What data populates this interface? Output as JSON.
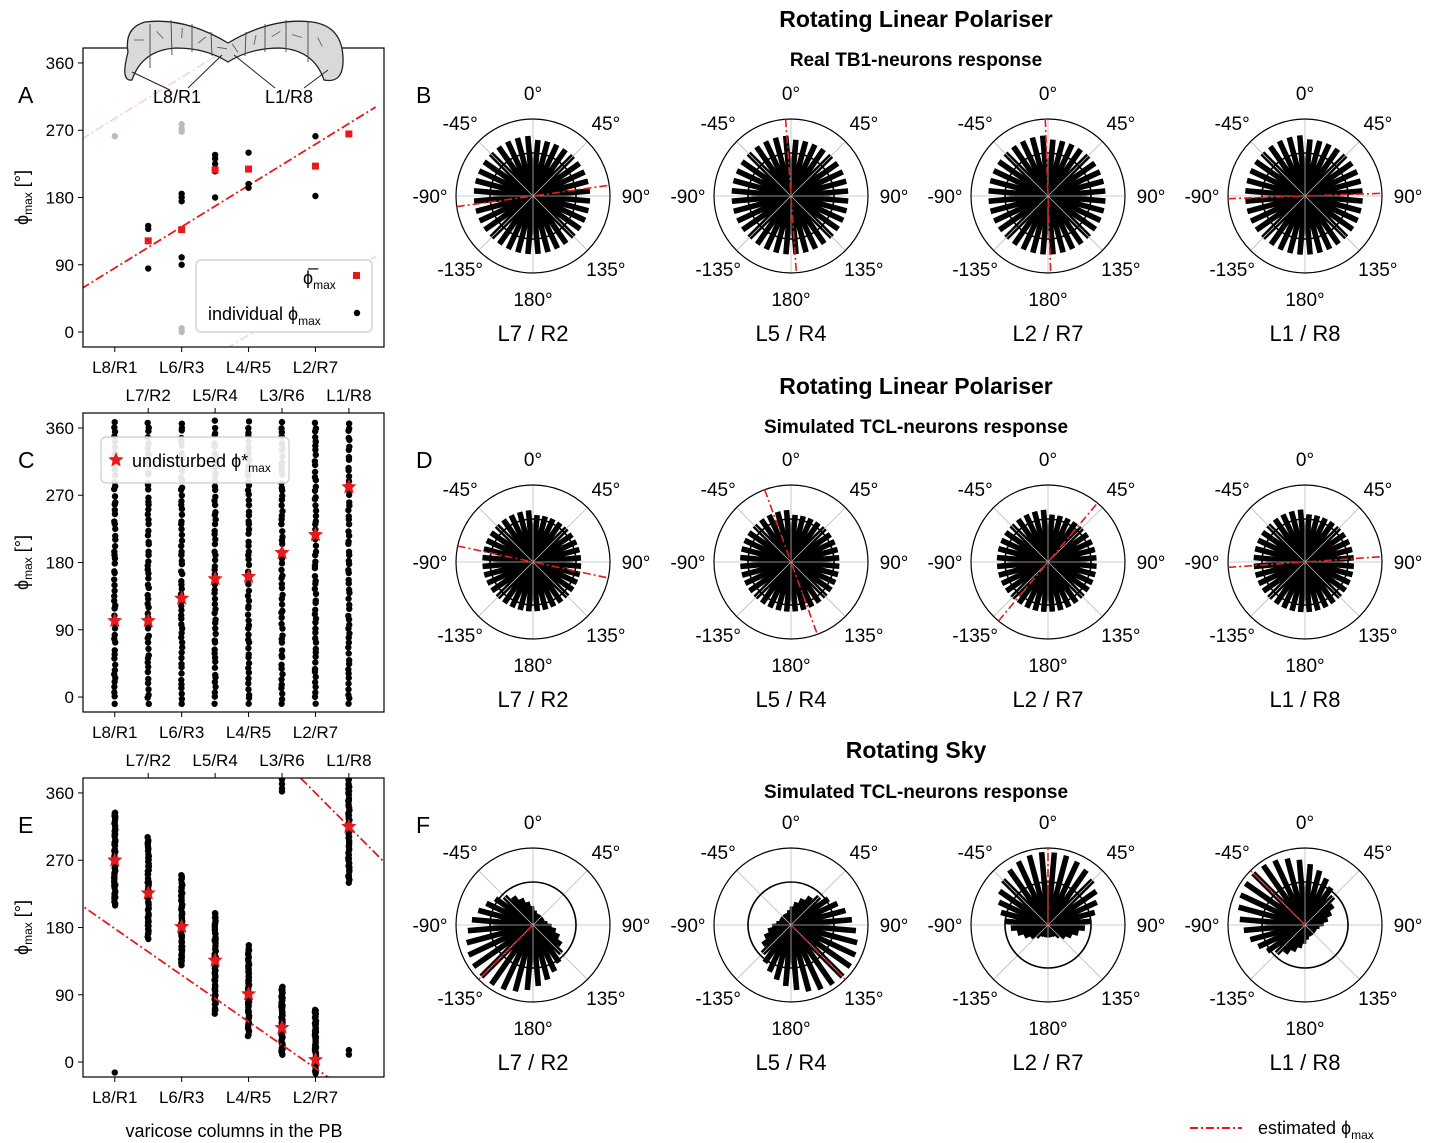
{
  "panel_letters": [
    "A",
    "B",
    "C",
    "D",
    "E",
    "F"
  ],
  "row_titles": [
    {
      "title": "Rotating Linear Polariser",
      "subtitle": "Real TB1-neurons response"
    },
    {
      "title": "Rotating Linear Polariser",
      "subtitle": "Simulated TCL-neurons response"
    },
    {
      "title": "Rotating Sky",
      "subtitle": "Simulated TCL-neurons response"
    }
  ],
  "pb_labels": {
    "left": "L8/R1",
    "right": "L1/R8"
  },
  "xaxis": {
    "bottom_ticks": [
      "L8/R1",
      "L6/R3",
      "L4/R5",
      "L2/R7"
    ],
    "top_ticks": [
      "L7/R2",
      "L5/R4",
      "L3/R6",
      "L1/R8"
    ],
    "xlabel": "varicose columns in the PB"
  },
  "ylabel": {
    "base": "ϕ",
    "sub": "max",
    "unit": "[°]"
  },
  "yticks": [
    "0",
    "90",
    "180",
    "270",
    "360"
  ],
  "legend_A": {
    "mean_label": "ϕ̅",
    "mean_sub": "max",
    "individual_label": "individual ϕ",
    "individual_sub": "max"
  },
  "legend_C": {
    "label": "undisturbed  ϕ*",
    "sub": "max"
  },
  "bottom_legend": {
    "label": "estimated ϕ",
    "sub": "max"
  },
  "polar_ticks": [
    "0°",
    "45°",
    "90°",
    "135°",
    "180°",
    "-135°",
    "-90°",
    "-45°"
  ],
  "polar_labels": [
    "L7 / R2",
    "L5 / R4",
    "L2 / R7",
    "L1 / R8"
  ],
  "colors": {
    "red": "#e41a1c",
    "black": "#000000",
    "gray": "#bbbbbb"
  },
  "chart_data": [
    {
      "type": "scatter",
      "panel": "A",
      "xlabel": "",
      "ylabel": "ϕmax [°]",
      "ylim": [
        -20,
        380
      ],
      "categories": [
        "L8/R1",
        "L7/R2",
        "L6/R3",
        "L5/R4",
        "L4/R5",
        "L3/R6",
        "L2/R7",
        "L1/R8"
      ],
      "series": [
        {
          "name": "ϕ̅max",
          "values": [
            null,
            122,
            137,
            217,
            218,
            null,
            222,
            265
          ]
        },
        {
          "name": "individual ϕmax",
          "points": [
            [
              1,
              85
            ],
            [
              1,
              138
            ],
            [
              1,
              142
            ],
            [
              2,
              90
            ],
            [
              2,
              100
            ],
            [
              2,
              175
            ],
            [
              2,
              180
            ],
            [
              2,
              185
            ],
            [
              3,
              180
            ],
            [
              3,
              215
            ],
            [
              3,
              225
            ],
            [
              3,
              232
            ],
            [
              3,
              237
            ],
            [
              4,
              193
            ],
            [
              4,
              198
            ],
            [
              4,
              218
            ],
            [
              4,
              240
            ],
            [
              6,
              182
            ],
            [
              6,
              262
            ]
          ]
        }
      ],
      "faded_points": [
        [
          0,
          262
        ],
        [
          2,
          0
        ],
        [
          2,
          5
        ],
        [
          2,
          268
        ],
        [
          2,
          272
        ],
        [
          2,
          278
        ]
      ],
      "fit_line": {
        "name": "estimated ϕmax",
        "x": [
          -1,
          7.8
        ],
        "y": [
          58,
          301
        ],
        "wrap": 360
      }
    },
    {
      "type": "scatter",
      "panel": "C",
      "ylabel": "ϕmax [°]",
      "ylim": [
        -20,
        380
      ],
      "categories": [
        "L8/R1",
        "L7/R2",
        "L6/R3",
        "L5/R4",
        "L4/R5",
        "L3/R6",
        "L2/R7",
        "L1/R8"
      ],
      "series": [
        {
          "name": "undisturbed ϕ*max",
          "values": [
            102,
            102,
            132,
            158,
            161,
            193,
            217,
            281
          ]
        }
      ],
      "individual_spread": "dense points from 0 to 360 in each column"
    },
    {
      "type": "scatter",
      "panel": "E",
      "ylabel": "ϕmax [°]",
      "ylim": [
        -20,
        380
      ],
      "xlabel": "varicose columns in the PB",
      "categories": [
        "L8/R1",
        "L7/R2",
        "L6/R3",
        "L5/R4",
        "L4/R5",
        "L3/R6",
        "L2/R7",
        "L1/R8"
      ],
      "series": [
        {
          "name": "undisturbed ϕ*max",
          "values": [
            270,
            226,
            181,
            136,
            91,
            46,
            3,
            315
          ]
        }
      ],
      "ranges": [
        [
          210,
          335
        ],
        [
          165,
          300
        ],
        [
          130,
          250
        ],
        [
          65,
          200
        ],
        [
          35,
          155
        ],
        [
          10,
          100
        ],
        [
          -15,
          70
        ],
        [
          240,
          385
        ]
      ],
      "fit_line": {
        "name": "estimated ϕmax",
        "slope_deg_per_column": -45
      }
    },
    {
      "type": "polar-bar",
      "panels": [
        "B",
        "D",
        "F"
      ],
      "columns": [
        "L7 / R2",
        "L5 / R4",
        "L2 / R7",
        "L1 / R8"
      ],
      "estimated_phi_max_deg": [
        [
          82,
          176,
          178,
          88
        ],
        [
          102,
          160,
          40,
          86
        ],
        [
          -135,
          135,
          0,
          -45
        ]
      ]
    }
  ]
}
